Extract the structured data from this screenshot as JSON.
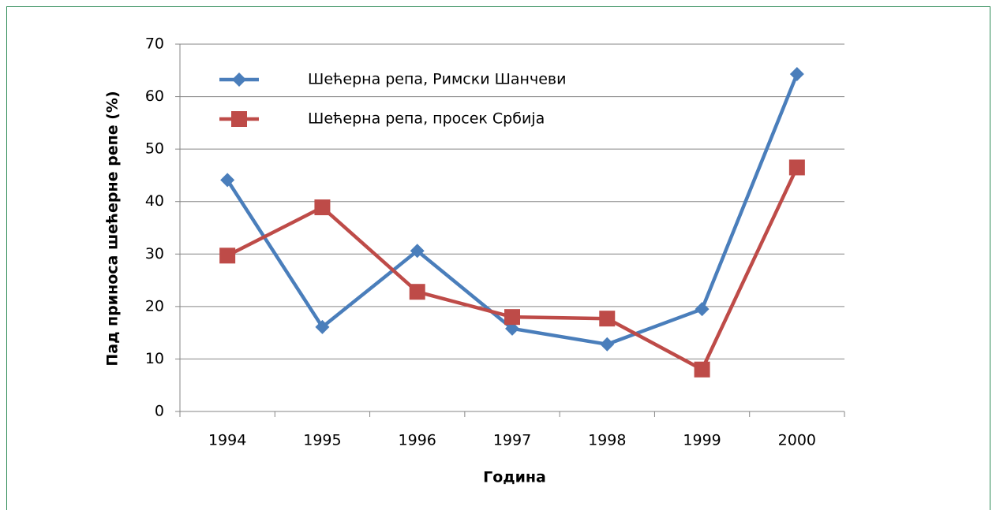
{
  "chart_data": {
    "type": "line",
    "xlabel": "Година",
    "ylabel": "Пад приноса шећерне репе (%)",
    "categories": [
      "1994",
      "1995",
      "1996",
      "1997",
      "1998",
      "1999",
      "2000"
    ],
    "series": [
      {
        "name": "Шећерна репа, Римски Шанчеви",
        "color": "#4a7ebb",
        "marker": "diamond",
        "values": [
          44.1,
          16.1,
          30.6,
          15.8,
          12.8,
          19.5,
          64.3
        ]
      },
      {
        "name": "Шећерна репа, просек Србија",
        "color": "#be4b48",
        "marker": "square",
        "values": [
          29.7,
          38.9,
          22.8,
          18.0,
          17.7,
          8.0,
          46.5
        ]
      }
    ],
    "ylim": [
      0,
      70
    ],
    "yticks": [
      0,
      10,
      20,
      30,
      40,
      50,
      60,
      70
    ],
    "grid": true,
    "legend": "upper left"
  }
}
